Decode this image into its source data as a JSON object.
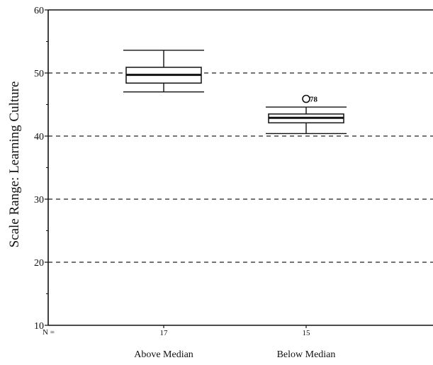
{
  "chart_data": {
    "type": "boxplot",
    "ylabel": "Scale Range:  Learning Culture",
    "ylim": [
      10,
      60
    ],
    "yticks": [
      10,
      20,
      30,
      40,
      50,
      60
    ],
    "grid": "dashed horizontal at 20, 30, 40, 50",
    "n_prefix": "N =",
    "categories": [
      "Above Median",
      "Below Median"
    ],
    "boxes": [
      {
        "label": "Above Median",
        "n": "17",
        "whisker_low": 47.0,
        "q1": 48.4,
        "median": 49.7,
        "q3": 50.9,
        "whisker_high": 53.6,
        "outliers": []
      },
      {
        "label": "Below Median",
        "n": "15",
        "whisker_low": 40.4,
        "q1": 42.1,
        "median": 42.9,
        "q3": 43.5,
        "whisker_high": 44.6,
        "outliers": [
          {
            "value": 45.9,
            "label": "78"
          }
        ]
      }
    ]
  }
}
